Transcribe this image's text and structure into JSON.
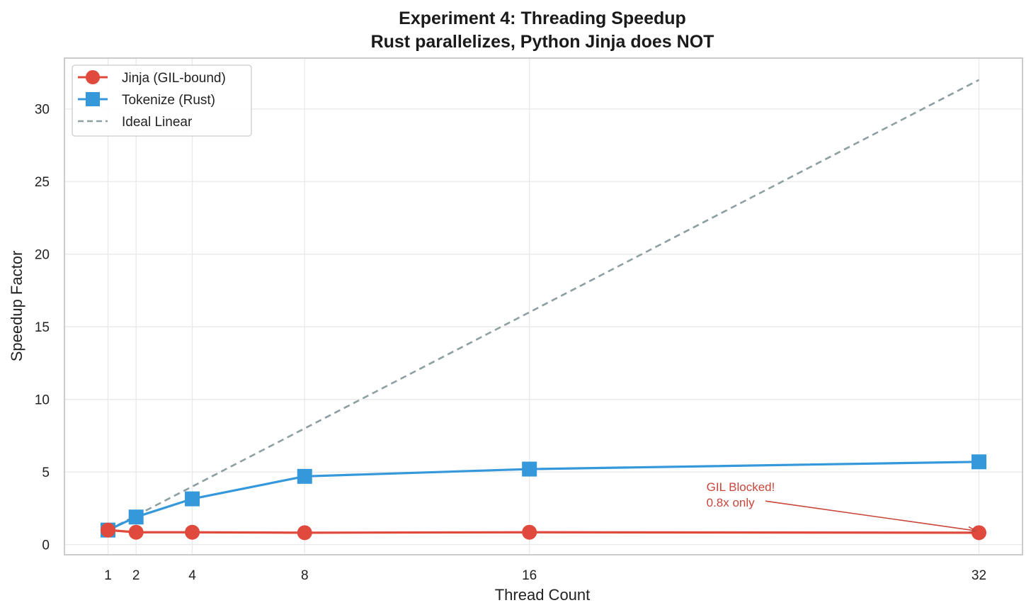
{
  "chart_data": {
    "type": "line",
    "title_line1": "Experiment 4: Threading Speedup",
    "title_line2": "Rust parallelizes, Python Jinja does NOT",
    "xlabel": "Thread Count",
    "ylabel": "Speedup Factor",
    "x": [
      1,
      2,
      4,
      8,
      16,
      32
    ],
    "x_tick_labels": [
      "1",
      "2",
      "4",
      "8",
      "16",
      "32"
    ],
    "xlim": [
      -0.55,
      33.55
    ],
    "ylim": [
      -0.7,
      33.5
    ],
    "y_ticks": [
      0,
      5,
      10,
      15,
      20,
      25,
      30
    ],
    "y_tick_labels": [
      "0",
      "5",
      "10",
      "15",
      "20",
      "25",
      "30"
    ],
    "grid": true,
    "legend_position": "top-left",
    "series": [
      {
        "name": "Jinja (GIL-bound)",
        "values": [
          1.0,
          0.85,
          0.85,
          0.82,
          0.85,
          0.82
        ],
        "color": "#e04a3c",
        "marker": "circle",
        "line_style": "solid"
      },
      {
        "name": "Tokenize (Rust)",
        "values": [
          1.0,
          1.9,
          3.15,
          4.7,
          5.2,
          5.7
        ],
        "color": "#3498db",
        "marker": "square",
        "line_style": "solid"
      },
      {
        "name": "Ideal Linear",
        "values": [
          1,
          2,
          4,
          8,
          16,
          32
        ],
        "color": "#8e9fa1",
        "marker": "none",
        "line_style": "dashed"
      }
    ],
    "annotation": {
      "line1": "GIL Blocked!",
      "line2": "0.8x only",
      "color": "#c9463b",
      "text_x": 22.3,
      "text_y": 3.5,
      "arrow_from_x": 24.4,
      "arrow_from_y": 3.0,
      "arrow_to_x": 31.9,
      "arrow_to_y": 0.95
    }
  }
}
